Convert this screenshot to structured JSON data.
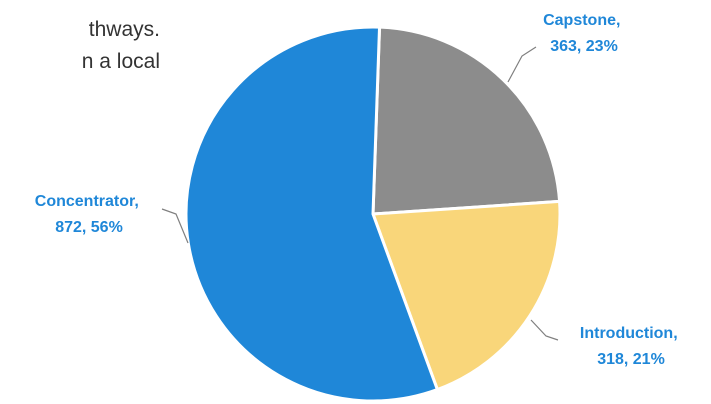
{
  "intro_text": [
    "thways.",
    "n a local"
  ],
  "chart_data": {
    "type": "pie",
    "title": "",
    "slices": [
      {
        "name": "Capstone",
        "value": 363,
        "percent": "23%",
        "label_line1": "Capstone,",
        "label_line2": "363, 23%",
        "color": "#8c8c8c"
      },
      {
        "name": "Introduction",
        "value": 318,
        "percent": "21%",
        "label_line1": "Introduction,",
        "label_line2": "318, 21%",
        "color": "#f9d67a"
      },
      {
        "name": "Concentrator",
        "value": 872,
        "percent": "56%",
        "label_line1": "Concentrator,",
        "label_line2": "872, 56%",
        "color": "#1f87d8"
      }
    ],
    "label_color": "#1f87d8",
    "leader_color": "#7f7f7f"
  }
}
